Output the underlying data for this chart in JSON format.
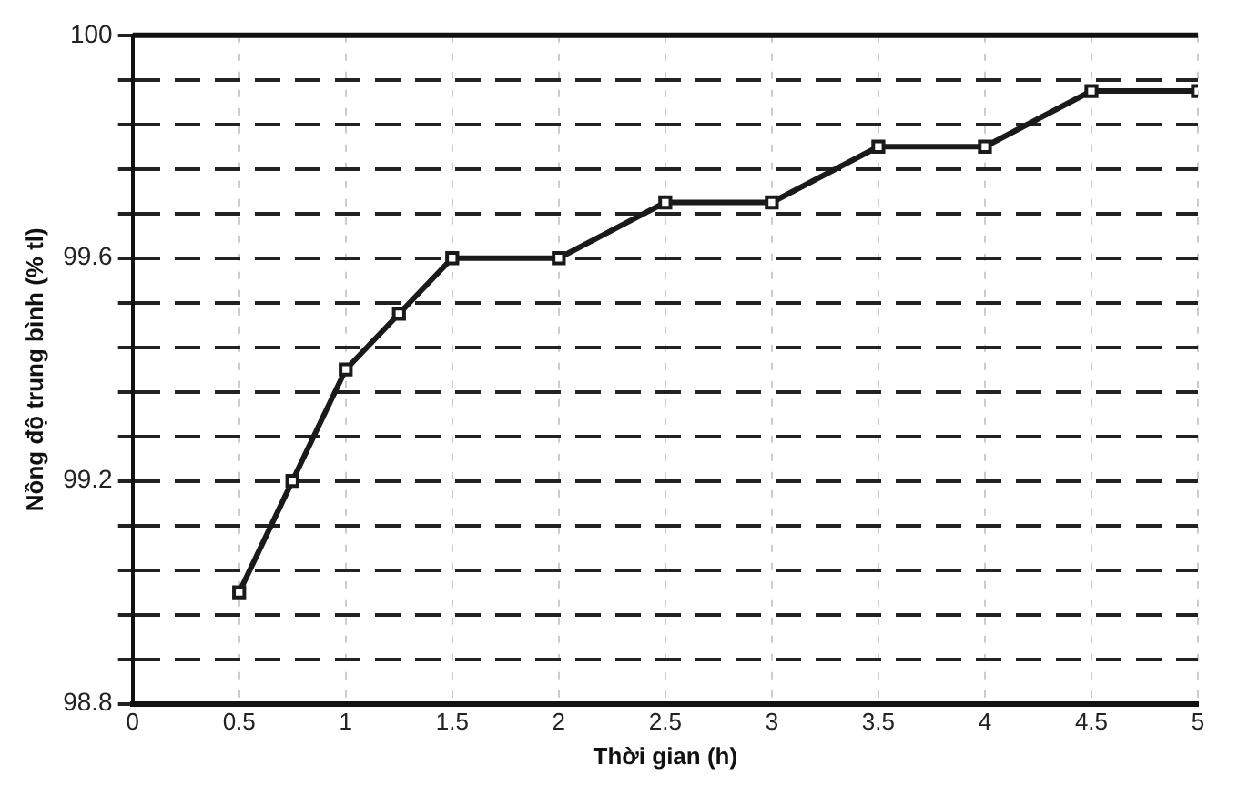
{
  "chart_data": {
    "type": "line",
    "xlabel": "Thời gian (h)",
    "ylabel": "Nồng độ trung bình (% tl)",
    "x": [
      0.5,
      0.75,
      1,
      1.25,
      1.5,
      2,
      2.5,
      3,
      3.5,
      4,
      4.5,
      5
    ],
    "series": [
      {
        "color": "#1a1a1a",
        "values": [
          99.0,
          99.2,
          99.4,
          99.5,
          99.6,
          99.6,
          99.7,
          99.7,
          99.8,
          99.8,
          99.9,
          99.9
        ]
      }
    ],
    "xlim": [
      0,
      5
    ],
    "xticks": [
      0,
      0.5,
      1,
      1.5,
      2,
      2.5,
      3,
      3.5,
      4,
      4.5,
      5
    ],
    "ylim": [
      98.8,
      100
    ],
    "yticks": [
      98.8,
      {
        "value": 98.88,
        "label": null
      },
      {
        "value": 98.96,
        "label": null
      },
      {
        "value": 99.04,
        "label": null
      },
      {
        "value": 99.12,
        "label": null
      },
      99.2,
      {
        "value": 99.28,
        "label": null
      },
      {
        "value": 99.36,
        "label": null
      },
      {
        "value": 99.44,
        "label": null
      },
      {
        "value": 99.52,
        "label": null
      },
      99.6,
      {
        "value": 99.68,
        "label": null
      },
      {
        "value": 99.76,
        "label": null
      },
      {
        "value": 99.84,
        "label": null
      },
      {
        "value": 99.92,
        "label": null
      },
      100
    ],
    "grid": true,
    "marker": "square",
    "line_style": "solid",
    "legend": false
  }
}
